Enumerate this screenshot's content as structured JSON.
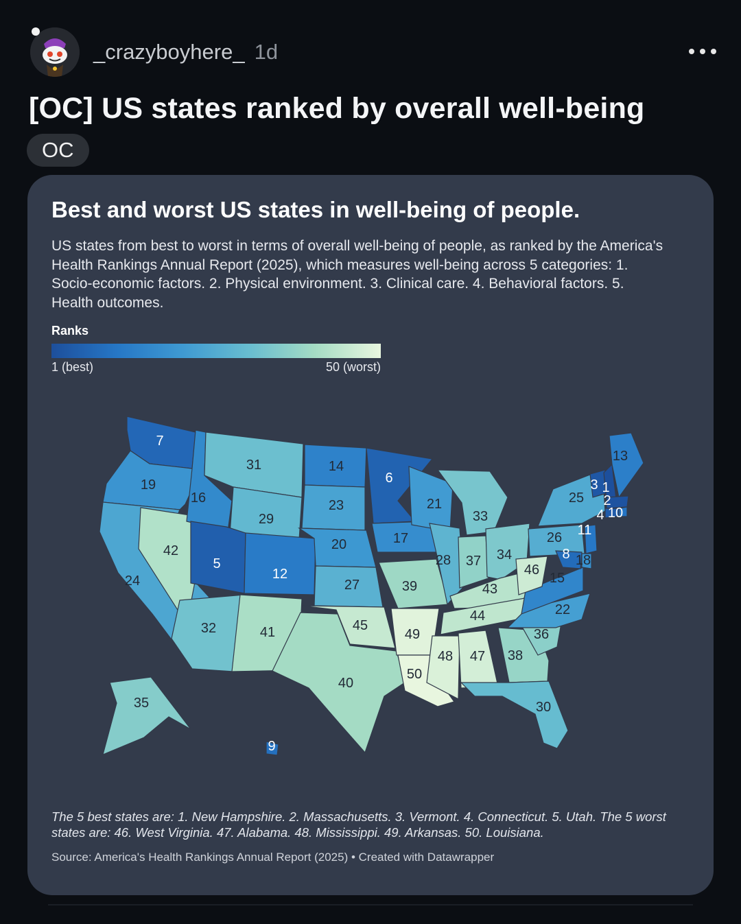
{
  "post": {
    "username": "_crazyboyhere_",
    "age": "1d",
    "title": "[OC] US states ranked by overall well-being",
    "flair": "OC"
  },
  "chart": {
    "title": "Best and worst US states in well-being of people.",
    "description": "US states from best to worst in terms of overall well-being of people, as ranked by the America's Health Rankings Annual Report (2025), which measures well-being across 5 categories: 1. Socio-economic factors. 2. Physical environment. 3. Clinical care. 4. Behavioral factors. 5. Health outcomes.",
    "legend_title": "Ranks",
    "legend_min": "1 (best)",
    "legend_max": "50 (worst)",
    "notes": "The 5 best states are: 1. New Hampshire. 2. Massachusetts. 3. Vermont. 4. Connecticut. 5. Utah. The 5 worst states are: 46. West Virginia. 47. Alabama. 48. Mississippi. 49. Arkansas. 50. Louisiana.",
    "source": "Source: America's Health Rankings Annual Report (2025) • Created with Datawrapper"
  },
  "chart_data": {
    "type": "choropleth",
    "color_scale": {
      "low": "#1d4f9c",
      "high": "#e8f6df",
      "min": 1,
      "max": 50
    },
    "states": [
      {
        "state": "WA",
        "rank": 7
      },
      {
        "state": "OR",
        "rank": 19
      },
      {
        "state": "CA",
        "rank": 24
      },
      {
        "state": "NV",
        "rank": 42
      },
      {
        "state": "ID",
        "rank": 16
      },
      {
        "state": "MT",
        "rank": 31
      },
      {
        "state": "WY",
        "rank": 29
      },
      {
        "state": "UT",
        "rank": 5
      },
      {
        "state": "AZ",
        "rank": 32
      },
      {
        "state": "CO",
        "rank": 12
      },
      {
        "state": "NM",
        "rank": 41
      },
      {
        "state": "ND",
        "rank": 14
      },
      {
        "state": "SD",
        "rank": 23
      },
      {
        "state": "NE",
        "rank": 20
      },
      {
        "state": "KS",
        "rank": 27
      },
      {
        "state": "OK",
        "rank": 45
      },
      {
        "state": "TX",
        "rank": 40
      },
      {
        "state": "MN",
        "rank": 6
      },
      {
        "state": "IA",
        "rank": 17
      },
      {
        "state": "MO",
        "rank": 39
      },
      {
        "state": "AR",
        "rank": 49
      },
      {
        "state": "LA",
        "rank": 50
      },
      {
        "state": "WI",
        "rank": 21
      },
      {
        "state": "IL",
        "rank": 28
      },
      {
        "state": "MI",
        "rank": 33
      },
      {
        "state": "IN",
        "rank": 37
      },
      {
        "state": "OH",
        "rank": 34
      },
      {
        "state": "KY",
        "rank": 43
      },
      {
        "state": "TN",
        "rank": 44
      },
      {
        "state": "MS",
        "rank": 48
      },
      {
        "state": "AL",
        "rank": 47
      },
      {
        "state": "GA",
        "rank": 38
      },
      {
        "state": "FL",
        "rank": 30
      },
      {
        "state": "SC",
        "rank": 36
      },
      {
        "state": "NC",
        "rank": 22
      },
      {
        "state": "VA",
        "rank": 15
      },
      {
        "state": "WV",
        "rank": 46
      },
      {
        "state": "PA",
        "rank": 26
      },
      {
        "state": "NY",
        "rank": 25
      },
      {
        "state": "VT",
        "rank": 3
      },
      {
        "state": "NH",
        "rank": 1
      },
      {
        "state": "ME",
        "rank": 13
      },
      {
        "state": "MA",
        "rank": 2
      },
      {
        "state": "CT",
        "rank": 4
      },
      {
        "state": "RI",
        "rank": 10
      },
      {
        "state": "NJ",
        "rank": 11
      },
      {
        "state": "DE",
        "rank": 18
      },
      {
        "state": "MD",
        "rank": 8
      },
      {
        "state": "AK",
        "rank": 35
      },
      {
        "state": "HI",
        "rank": 9
      }
    ]
  }
}
